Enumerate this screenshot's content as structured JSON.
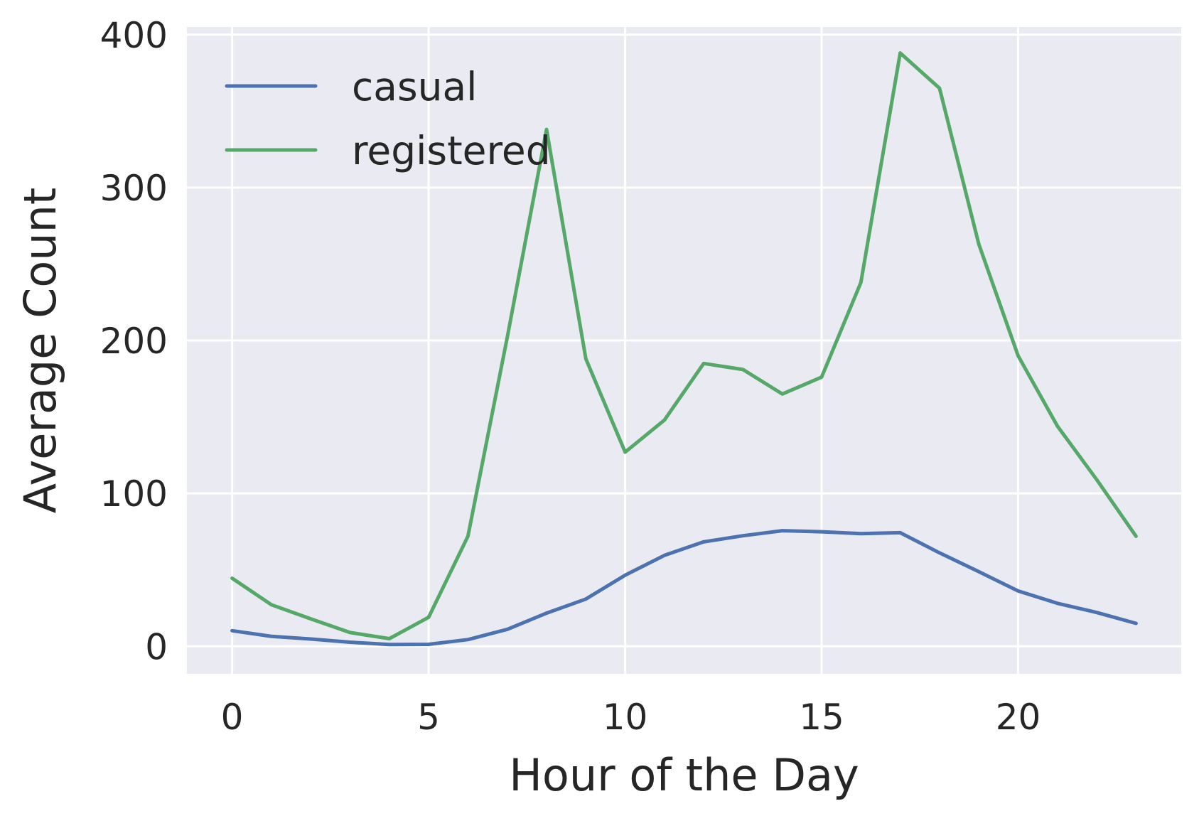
{
  "chart_data": {
    "type": "line",
    "title": "",
    "xlabel": "Hour of the Day",
    "ylabel": "Average Count",
    "x": [
      0,
      1,
      2,
      3,
      4,
      5,
      6,
      7,
      8,
      9,
      10,
      11,
      12,
      13,
      14,
      15,
      16,
      17,
      18,
      19,
      20,
      21,
      22,
      23
    ],
    "xlim": [
      -1.15,
      24.15
    ],
    "ylim": [
      -18,
      405
    ],
    "xticks": [
      0,
      5,
      10,
      15,
      20
    ],
    "xtick_labels": [
      "0",
      "5",
      "10",
      "15",
      "20"
    ],
    "yticks": [
      0,
      100,
      200,
      300,
      400
    ],
    "ytick_labels": [
      "0",
      "100",
      "200",
      "300",
      "400"
    ],
    "grid": true,
    "legend_position": "top-left",
    "series": [
      {
        "name": "casual",
        "color": "#4c72b0",
        "values": [
          10.2,
          6.5,
          4.8,
          2.7,
          1.2,
          1.3,
          4.4,
          11.1,
          21.7,
          30.9,
          46.5,
          59.5,
          68.3,
          72.3,
          75.6,
          74.9,
          73.7,
          74.3,
          61.1,
          48.8,
          36.2,
          28.1,
          22.1,
          15.0
        ]
      },
      {
        "name": "registered",
        "color": "#55a868",
        "values": [
          44.5,
          27.2,
          18.0,
          9.0,
          5.0,
          19.0,
          72.0,
          202.0,
          338.0,
          188.0,
          127.0,
          148.0,
          185.0,
          181.0,
          165.0,
          176.0,
          238.0,
          388.0,
          365.0,
          263.0,
          190.0,
          144.0,
          109.0,
          72.0
        ]
      }
    ]
  }
}
